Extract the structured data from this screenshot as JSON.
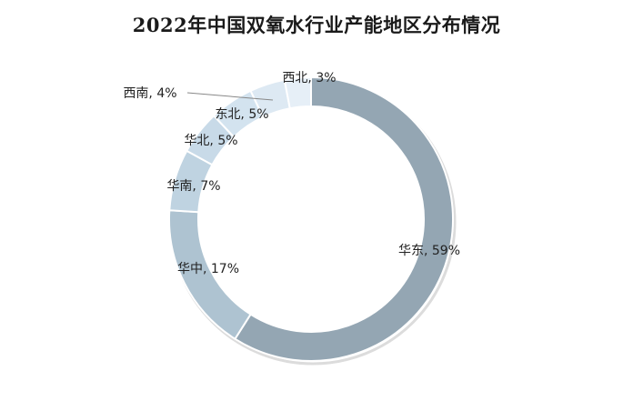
{
  "chart_data": {
    "type": "pie",
    "title": "2022年中国双氧水行业产能地区分布情况",
    "donut": true,
    "legend": "none",
    "slices": [
      {
        "label": "华东, 59%",
        "name": "华东",
        "value": 59,
        "color": "#94a6b3"
      },
      {
        "label": "华中, 17%",
        "name": "华中",
        "value": 17,
        "color": "#aec3d1"
      },
      {
        "label": "华南, 7%",
        "name": "华南",
        "value": 7,
        "color": "#bfd3e1"
      },
      {
        "label": "华北, 5%",
        "name": "华北",
        "value": 5,
        "color": "#c8dae8"
      },
      {
        "label": "东北, 5%",
        "name": "东北",
        "value": 5,
        "color": "#d3e3ef"
      },
      {
        "label": "西南, 4%",
        "name": "西南",
        "value": 4,
        "color": "#dde9f3"
      },
      {
        "label": "西北, 3%",
        "name": "西北",
        "value": 3,
        "color": "#e6eff7"
      }
    ]
  }
}
